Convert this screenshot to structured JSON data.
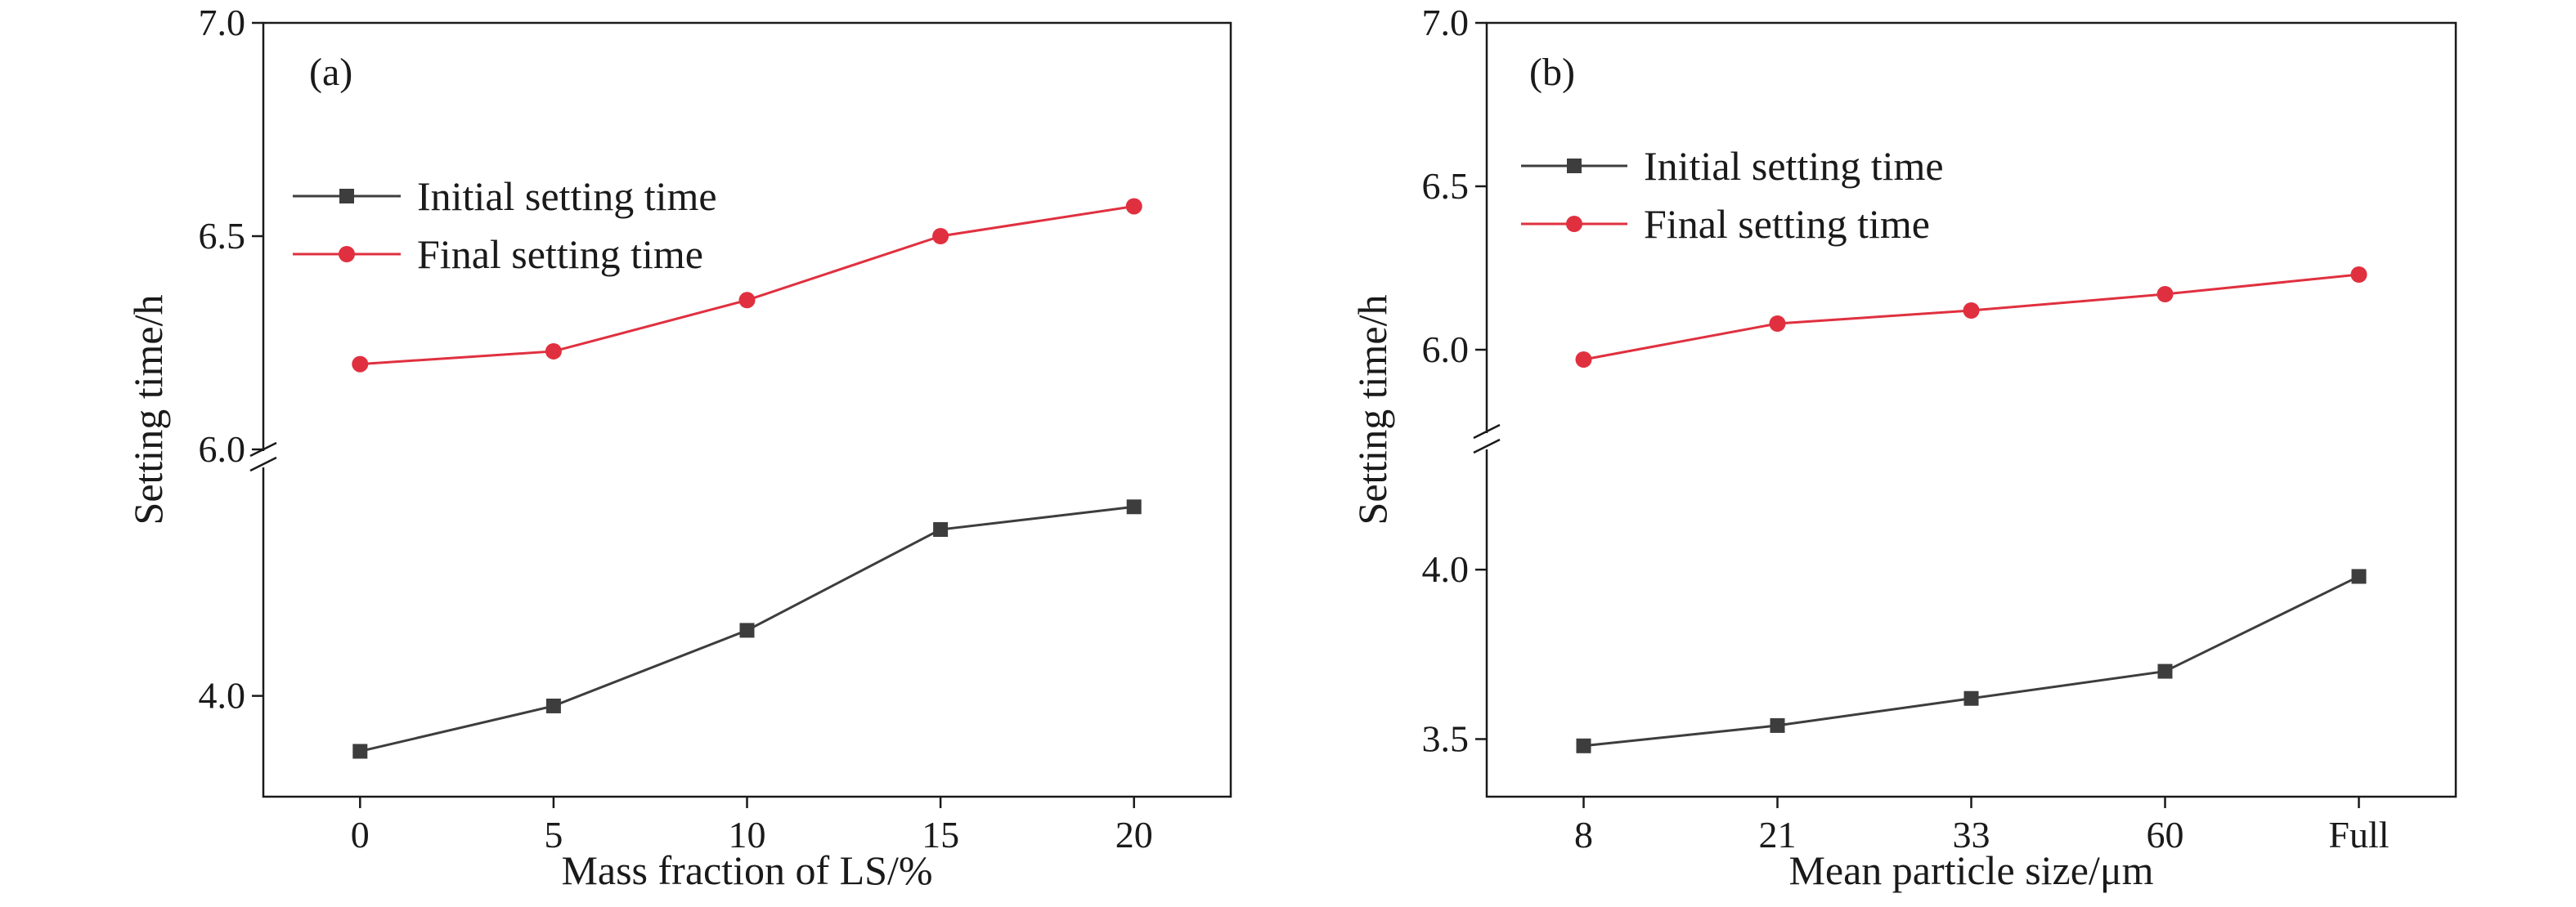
{
  "chart_data": [
    {
      "type": "line",
      "panel_label": "(a)",
      "xlabel": "Mass fraction of LS/%",
      "ylabel": "Setting time/h",
      "categories": [
        "0",
        "5",
        "10",
        "15",
        "20"
      ],
      "series": [
        {
          "name": "Initial setting time",
          "color": "#3d3d3d",
          "marker": "square",
          "values": [
            3.89,
            3.98,
            4.13,
            4.33,
            4.375
          ]
        },
        {
          "name": "Final setting time",
          "color": "#e0303f",
          "marker": "circle",
          "values": [
            6.2,
            6.23,
            6.35,
            6.5,
            6.57
          ]
        }
      ],
      "y_segments": [
        {
          "range": [
            3.8,
            4.45
          ],
          "ticks": [
            "4.0"
          ]
        },
        {
          "range": [
            6.0,
            7.0
          ],
          "ticks": [
            "6.0",
            "6.5",
            "7.0"
          ]
        }
      ],
      "axis_break": true,
      "legend_position": "upper-left",
      "grid": false
    },
    {
      "type": "line",
      "panel_label": "(b)",
      "xlabel": "Mean particle size/μm",
      "ylabel": "Setting time/h",
      "categories": [
        "8",
        "21",
        "33",
        "60",
        "Full"
      ],
      "series": [
        {
          "name": "Initial setting time",
          "color": "#3d3d3d",
          "marker": "square",
          "values": [
            3.48,
            3.54,
            3.62,
            3.7,
            3.98
          ]
        },
        {
          "name": "Final setting time",
          "color": "#e0303f",
          "marker": "circle",
          "values": [
            5.97,
            6.08,
            6.12,
            6.17,
            6.23
          ]
        }
      ],
      "y_segments": [
        {
          "range": [
            3.33,
            4.35
          ],
          "ticks": [
            "3.5",
            "4.0"
          ]
        },
        {
          "range": [
            5.75,
            7.0
          ],
          "ticks": [
            "6.0",
            "6.5",
            "7.0"
          ]
        }
      ],
      "axis_break": true,
      "legend_position": "upper-left",
      "grid": false
    }
  ]
}
